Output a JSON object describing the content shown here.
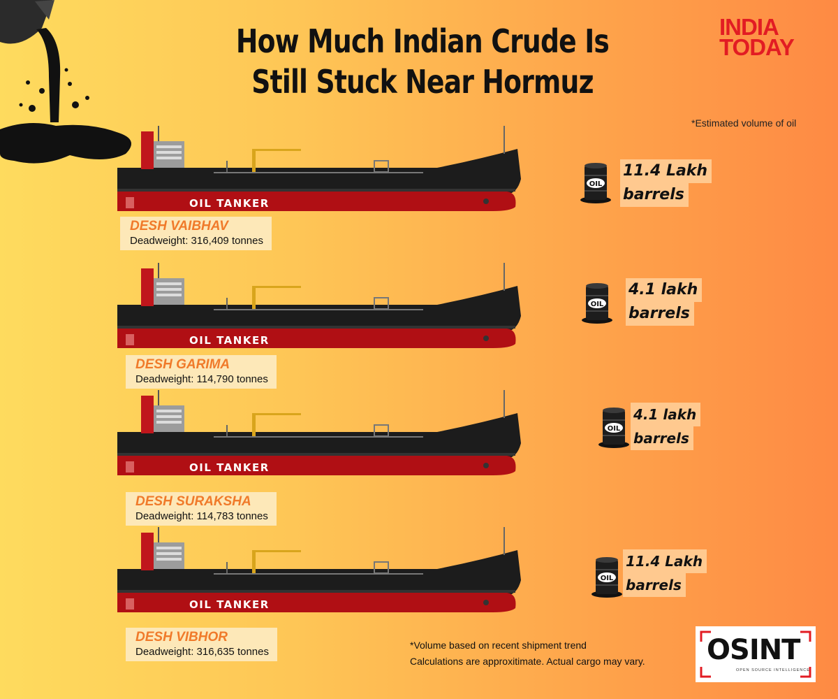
{
  "title": "How Much Indian Crude Is Still Stuck Near Hormuz",
  "brand": {
    "line1": "INDIA",
    "line2": "TODAY"
  },
  "estimate_note": "*Estimated volume of oil",
  "ship_hull_label": "OIL TANKER",
  "barrel_label": "OIL",
  "ships": [
    {
      "name": "DESH VAIBHAV",
      "deadweight": "Deadweight: 316,409 tonnes",
      "volume_line1": "11.4 Lakh",
      "volume_line2": "barrels"
    },
    {
      "name": "DESH GARIMA",
      "deadweight": "Deadweight: 114,790 tonnes",
      "volume_line1": "4.1 lakh",
      "volume_line2": "barrels"
    },
    {
      "name": "DESH SURAKSHA",
      "deadweight": "Deadweight: 114,783 tonnes",
      "volume_line1": "4.1 lakh",
      "volume_line2": "barrels"
    },
    {
      "name": "DESH VIBHOR",
      "deadweight": "Deadweight: 316,635 tonnes",
      "volume_line1": "11.4 Lakh",
      "volume_line2": "barrels"
    }
  ],
  "footnote": {
    "line1": "*Volume based on recent shipment trend",
    "line2": "Calculations are approxitimate. Actual cargo may vary."
  },
  "osint": {
    "name": "OSINT",
    "subtitle": "OPEN SOURCE INTELLIGENCE"
  },
  "colors": {
    "hull_red": "#b00f14",
    "hull_black": "#1c1c1c",
    "name_orange": "#f07a2a",
    "brand_red": "#e21c23"
  }
}
